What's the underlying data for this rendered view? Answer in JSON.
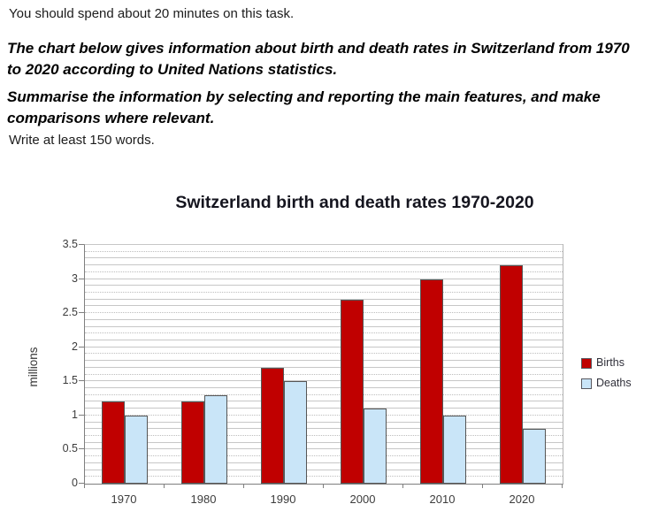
{
  "task": {
    "time_instruction": "You should spend about 20 minutes on this task.",
    "prompt": {
      "line1": "The chart below gives information about birth and death rates in Switzerland from 1970",
      "line2": "to 2020 according to United Nations statistics."
    },
    "summarise": {
      "line1": "Summarise the information by selecting and reporting the main features, and make",
      "line2": "comparisons where relevant."
    },
    "word_count_instruction": "Write at least 150 words."
  },
  "chart_data": {
    "type": "bar",
    "title": "Switzerland birth and death rates 1970-2020",
    "ylabel": "millions",
    "xlabel": "",
    "ylim": [
      0,
      3.5
    ],
    "ytick_labels": [
      "0",
      "0.5",
      "1",
      "1.5",
      "2",
      "2.5",
      "3",
      "3.5"
    ],
    "categories": [
      "1970",
      "1980",
      "1990",
      "2000",
      "2010",
      "2020"
    ],
    "series": [
      {
        "name": "Births",
        "color": "#c00000",
        "values": [
          1.2,
          1.2,
          1.7,
          2.7,
          3.0,
          3.2
        ]
      },
      {
        "name": "Deaths",
        "color": "#c9e5f8",
        "values": [
          1.0,
          1.3,
          1.5,
          1.1,
          1.0,
          0.8
        ]
      }
    ],
    "grid": {
      "axis": "y",
      "minor_step": 0.1,
      "dotted": "every third minor line"
    },
    "legend_position": "right"
  }
}
